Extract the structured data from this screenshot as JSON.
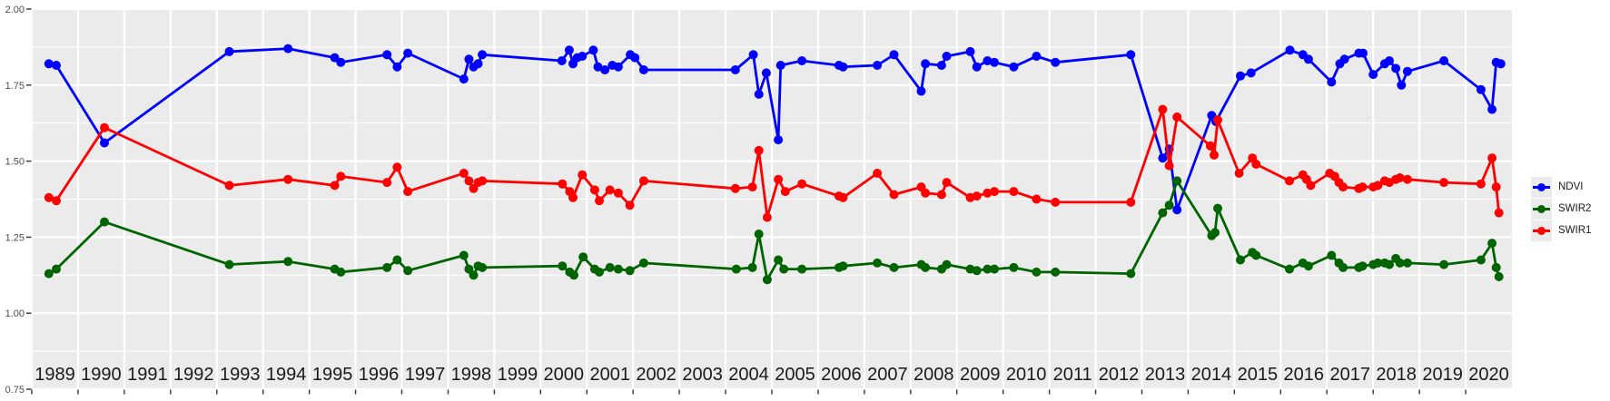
{
  "chart": {
    "background": "#FFFFFF",
    "panel_fill": "#EBEBEB",
    "grid_color": "#FFFFFF",
    "tick_color": "#333333",
    "y_axis_text_color": "#4D4D4D",
    "x_axis_text_color": "#1A1A1A",
    "legend_key_fill": "#EBEBEB"
  },
  "chart_data": {
    "type": "line",
    "marker": "circle",
    "title": "",
    "xlabel": "",
    "ylabel": "",
    "grid": true,
    "legend_position": "right",
    "x_range_years": [
      1989,
      2021
    ],
    "x_tick_labels": [
      "1989",
      "1990",
      "1991",
      "1992",
      "1993",
      "1994",
      "1995",
      "1996",
      "1997",
      "1998",
      "1999",
      "2000",
      "2001",
      "2002",
      "2003",
      "2004",
      "2005",
      "2006",
      "2007",
      "2008",
      "2009",
      "2010",
      "2011",
      "2012",
      "2013",
      "2014",
      "2015",
      "2016",
      "2017",
      "2018",
      "2019",
      "2020"
    ],
    "ylim": [
      0.75,
      2.0
    ],
    "y_major_ticks": [
      0.75,
      1.0,
      1.25,
      1.5,
      1.75,
      2.0
    ],
    "y_tick_labels": [
      "0.75",
      "1.00",
      "1.25",
      "1.50",
      "1.75",
      "2.00"
    ],
    "y_minor_step": 0.125,
    "series": [
      {
        "name": "NDVI",
        "color": "#0000FF",
        "points": [
          [
            1989.37,
            1.82
          ],
          [
            1989.53,
            1.815
          ],
          [
            1990.57,
            1.56
          ],
          [
            1993.27,
            1.86
          ],
          [
            1994.54,
            1.87
          ],
          [
            1995.55,
            1.84
          ],
          [
            1995.68,
            1.825
          ],
          [
            1996.68,
            1.85
          ],
          [
            1996.9,
            1.81
          ],
          [
            1997.13,
            1.855
          ],
          [
            1998.34,
            1.77
          ],
          [
            1998.45,
            1.835
          ],
          [
            1998.55,
            1.81
          ],
          [
            1998.65,
            1.82
          ],
          [
            1998.74,
            1.85
          ],
          [
            2000.46,
            1.83
          ],
          [
            2000.62,
            1.865
          ],
          [
            2000.7,
            1.82
          ],
          [
            2000.79,
            1.84
          ],
          [
            2000.9,
            1.845
          ],
          [
            2001.14,
            1.865
          ],
          [
            2001.24,
            1.81
          ],
          [
            2001.39,
            1.8
          ],
          [
            2001.55,
            1.815
          ],
          [
            2001.68,
            1.81
          ],
          [
            2001.94,
            1.85
          ],
          [
            2002.04,
            1.84
          ],
          [
            2002.23,
            1.8
          ],
          [
            2004.21,
            1.8
          ],
          [
            2004.6,
            1.85
          ],
          [
            2004.72,
            1.72
          ],
          [
            2004.88,
            1.79
          ],
          [
            2005.14,
            1.57
          ],
          [
            2005.19,
            1.815
          ],
          [
            2005.65,
            1.83
          ],
          [
            2006.45,
            1.815
          ],
          [
            2006.54,
            1.81
          ],
          [
            2007.28,
            1.815
          ],
          [
            2007.64,
            1.85
          ],
          [
            2008.23,
            1.73
          ],
          [
            2008.32,
            1.82
          ],
          [
            2008.67,
            1.815
          ],
          [
            2008.78,
            1.845
          ],
          [
            2009.29,
            1.86
          ],
          [
            2009.43,
            1.81
          ],
          [
            2009.66,
            1.83
          ],
          [
            2009.81,
            1.825
          ],
          [
            2010.23,
            1.81
          ],
          [
            2010.72,
            1.845
          ],
          [
            2011.13,
            1.825
          ],
          [
            2012.76,
            1.85
          ],
          [
            2013.45,
            1.51
          ],
          [
            2013.59,
            1.54
          ],
          [
            2013.76,
            1.34
          ],
          [
            2014.51,
            1.65
          ],
          [
            2014.6,
            1.63
          ],
          [
            2015.13,
            1.78
          ],
          [
            2015.36,
            1.79
          ],
          [
            2016.2,
            1.865
          ],
          [
            2016.48,
            1.85
          ],
          [
            2016.6,
            1.835
          ],
          [
            2017.1,
            1.76
          ],
          [
            2017.28,
            1.82
          ],
          [
            2017.38,
            1.835
          ],
          [
            2017.69,
            1.855
          ],
          [
            2017.78,
            1.855
          ],
          [
            2018.0,
            1.785
          ],
          [
            2018.25,
            1.82
          ],
          [
            2018.35,
            1.83
          ],
          [
            2018.49,
            1.805
          ],
          [
            2018.61,
            1.75
          ],
          [
            2018.74,
            1.795
          ],
          [
            2019.53,
            1.83
          ],
          [
            2020.33,
            1.735
          ],
          [
            2020.57,
            1.67
          ],
          [
            2020.66,
            1.825
          ],
          [
            2020.76,
            1.82
          ]
        ]
      },
      {
        "name": "SWIR2",
        "color": "#006400",
        "points": [
          [
            1989.37,
            1.13
          ],
          [
            1989.53,
            1.145
          ],
          [
            1990.57,
            1.3
          ],
          [
            1993.27,
            1.16
          ],
          [
            1994.54,
            1.17
          ],
          [
            1995.55,
            1.145
          ],
          [
            1995.68,
            1.135
          ],
          [
            1996.68,
            1.15
          ],
          [
            1996.9,
            1.175
          ],
          [
            1997.13,
            1.14
          ],
          [
            1998.34,
            1.19
          ],
          [
            1998.45,
            1.145
          ],
          [
            1998.55,
            1.125
          ],
          [
            1998.65,
            1.155
          ],
          [
            1998.74,
            1.15
          ],
          [
            2000.47,
            1.155
          ],
          [
            2000.63,
            1.135
          ],
          [
            2000.72,
            1.125
          ],
          [
            2000.92,
            1.185
          ],
          [
            2001.17,
            1.145
          ],
          [
            2001.27,
            1.135
          ],
          [
            2001.5,
            1.15
          ],
          [
            2001.68,
            1.145
          ],
          [
            2001.93,
            1.14
          ],
          [
            2002.23,
            1.165
          ],
          [
            2004.23,
            1.145
          ],
          [
            2004.58,
            1.15
          ],
          [
            2004.72,
            1.26
          ],
          [
            2004.9,
            1.11
          ],
          [
            2005.14,
            1.175
          ],
          [
            2005.26,
            1.145
          ],
          [
            2005.65,
            1.145
          ],
          [
            2006.45,
            1.15
          ],
          [
            2006.54,
            1.155
          ],
          [
            2007.28,
            1.165
          ],
          [
            2007.64,
            1.15
          ],
          [
            2008.23,
            1.16
          ],
          [
            2008.32,
            1.15
          ],
          [
            2008.67,
            1.145
          ],
          [
            2008.78,
            1.16
          ],
          [
            2009.29,
            1.145
          ],
          [
            2009.43,
            1.14
          ],
          [
            2009.66,
            1.145
          ],
          [
            2009.81,
            1.145
          ],
          [
            2010.23,
            1.15
          ],
          [
            2010.72,
            1.135
          ],
          [
            2011.13,
            1.135
          ],
          [
            2012.76,
            1.13
          ],
          [
            2013.45,
            1.33
          ],
          [
            2013.59,
            1.355
          ],
          [
            2013.76,
            1.435
          ],
          [
            2014.51,
            1.255
          ],
          [
            2014.58,
            1.265
          ],
          [
            2014.64,
            1.345
          ],
          [
            2015.13,
            1.175
          ],
          [
            2015.39,
            1.2
          ],
          [
            2015.47,
            1.19
          ],
          [
            2016.19,
            1.145
          ],
          [
            2016.48,
            1.165
          ],
          [
            2016.6,
            1.155
          ],
          [
            2017.1,
            1.19
          ],
          [
            2017.26,
            1.165
          ],
          [
            2017.35,
            1.15
          ],
          [
            2017.69,
            1.15
          ],
          [
            2017.77,
            1.155
          ],
          [
            2018.0,
            1.16
          ],
          [
            2018.1,
            1.165
          ],
          [
            2018.25,
            1.165
          ],
          [
            2018.35,
            1.16
          ],
          [
            2018.49,
            1.18
          ],
          [
            2018.58,
            1.165
          ],
          [
            2018.74,
            1.165
          ],
          [
            2019.53,
            1.16
          ],
          [
            2020.33,
            1.175
          ],
          [
            2020.57,
            1.23
          ],
          [
            2020.66,
            1.15
          ],
          [
            2020.72,
            1.12
          ]
        ]
      },
      {
        "name": "SWIR1",
        "color": "#FF0000",
        "points": [
          [
            1989.37,
            1.38
          ],
          [
            1989.53,
            1.37
          ],
          [
            1990.57,
            1.61
          ],
          [
            1993.27,
            1.42
          ],
          [
            1994.54,
            1.44
          ],
          [
            1995.55,
            1.42
          ],
          [
            1995.68,
            1.45
          ],
          [
            1996.68,
            1.43
          ],
          [
            1996.9,
            1.48
          ],
          [
            1997.13,
            1.4
          ],
          [
            1998.34,
            1.46
          ],
          [
            1998.45,
            1.435
          ],
          [
            1998.55,
            1.41
          ],
          [
            1998.65,
            1.43
          ],
          [
            1998.74,
            1.435
          ],
          [
            2000.47,
            1.425
          ],
          [
            2000.63,
            1.4
          ],
          [
            2000.7,
            1.38
          ],
          [
            2000.9,
            1.455
          ],
          [
            2001.17,
            1.405
          ],
          [
            2001.27,
            1.37
          ],
          [
            2001.5,
            1.405
          ],
          [
            2001.68,
            1.395
          ],
          [
            2001.93,
            1.355
          ],
          [
            2002.23,
            1.435
          ],
          [
            2004.21,
            1.41
          ],
          [
            2004.58,
            1.415
          ],
          [
            2004.72,
            1.535
          ],
          [
            2004.9,
            1.315
          ],
          [
            2005.14,
            1.44
          ],
          [
            2005.29,
            1.4
          ],
          [
            2005.65,
            1.425
          ],
          [
            2006.45,
            1.385
          ],
          [
            2006.54,
            1.38
          ],
          [
            2007.28,
            1.46
          ],
          [
            2007.64,
            1.39
          ],
          [
            2008.23,
            1.415
          ],
          [
            2008.32,
            1.395
          ],
          [
            2008.67,
            1.39
          ],
          [
            2008.78,
            1.43
          ],
          [
            2009.29,
            1.38
          ],
          [
            2009.43,
            1.385
          ],
          [
            2009.66,
            1.395
          ],
          [
            2009.81,
            1.4
          ],
          [
            2010.23,
            1.4
          ],
          [
            2010.72,
            1.375
          ],
          [
            2011.13,
            1.365
          ],
          [
            2012.76,
            1.365
          ],
          [
            2013.45,
            1.67
          ],
          [
            2013.59,
            1.485
          ],
          [
            2013.76,
            1.645
          ],
          [
            2014.48,
            1.55
          ],
          [
            2014.56,
            1.52
          ],
          [
            2014.64,
            1.635
          ],
          [
            2015.1,
            1.46
          ],
          [
            2015.39,
            1.51
          ],
          [
            2015.47,
            1.49
          ],
          [
            2016.19,
            1.435
          ],
          [
            2016.48,
            1.455
          ],
          [
            2016.56,
            1.44
          ],
          [
            2016.65,
            1.42
          ],
          [
            2017.06,
            1.46
          ],
          [
            2017.17,
            1.45
          ],
          [
            2017.26,
            1.43
          ],
          [
            2017.35,
            1.415
          ],
          [
            2017.69,
            1.41
          ],
          [
            2017.77,
            1.415
          ],
          [
            2018.0,
            1.415
          ],
          [
            2018.1,
            1.42
          ],
          [
            2018.25,
            1.435
          ],
          [
            2018.35,
            1.43
          ],
          [
            2018.49,
            1.44
          ],
          [
            2018.58,
            1.445
          ],
          [
            2018.74,
            1.44
          ],
          [
            2019.53,
            1.43
          ],
          [
            2020.33,
            1.425
          ],
          [
            2020.57,
            1.51
          ],
          [
            2020.66,
            1.415
          ],
          [
            2020.72,
            1.33
          ]
        ]
      }
    ]
  }
}
